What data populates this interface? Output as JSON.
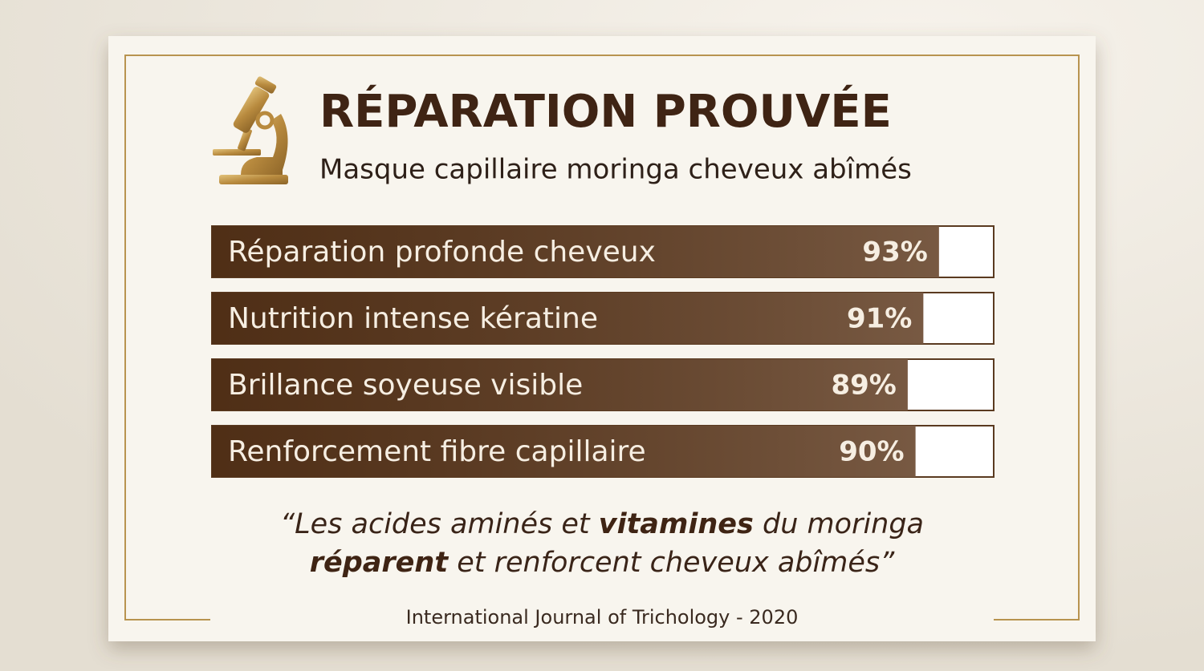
{
  "chart_data": {
    "type": "bar",
    "orientation": "horizontal",
    "title": "RÉPARATION PROUVÉE",
    "subtitle": "Masque capillaire moringa cheveux abîmés",
    "categories": [
      "Réparation profonde cheveux",
      "Nutrition intense kératine",
      "Brillance soyeuse visible",
      "Renforcement fibre capillaire"
    ],
    "values": [
      93,
      91,
      89,
      90
    ],
    "value_labels": [
      "93%",
      "91%",
      "89%",
      "90%"
    ],
    "xlim": [
      0,
      100
    ],
    "color": "#5a3519",
    "annotations": {
      "quote": [
        [
          {
            "text": "“Les acides aminés et ",
            "bold": false
          },
          {
            "text": "vitamines",
            "bold": true
          },
          {
            "text": " du moringa",
            "bold": false
          }
        ],
        [
          {
            "text": "réparent",
            "bold": true
          },
          {
            "text": " et renforcent cheveux abîmés”",
            "bold": false
          }
        ]
      ],
      "source": "International Journal of Trichology - 2020"
    }
  }
}
